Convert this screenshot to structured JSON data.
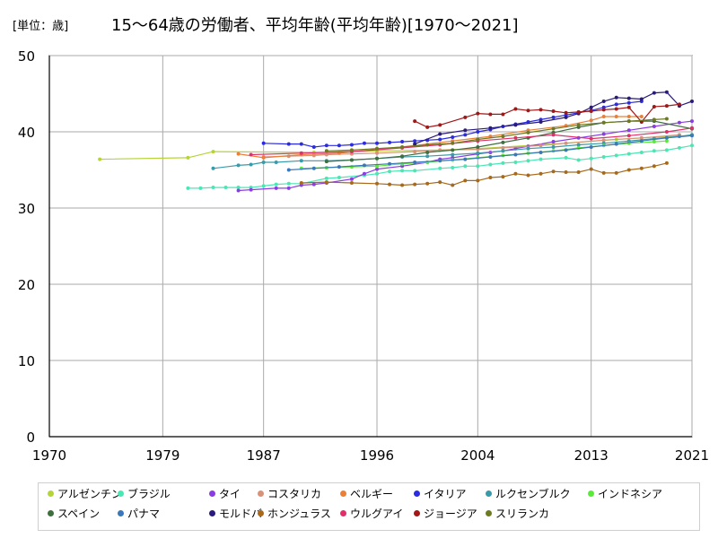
{
  "header": {
    "unit_label": "[単位：歳]",
    "title": "15～64歳の労働者、平均年齢(平均年齢)[1970～2021]"
  },
  "chart_data": {
    "type": "line",
    "xlim": [
      1970,
      2021
    ],
    "ylim": [
      0,
      50
    ],
    "xticks": [
      1970,
      1979,
      1987,
      1996,
      2004,
      2013,
      2021
    ],
    "yticks": [
      0,
      10,
      20,
      30,
      40,
      50
    ],
    "grid": true,
    "legend_position": "bottom",
    "series": [
      {
        "name": "アルゼンチン",
        "color": "#b5d33a",
        "x": [
          1974,
          1981,
          1983,
          1991,
          1996,
          2001,
          2004,
          2010,
          2015,
          2020
        ],
        "y": [
          36.4,
          36.6,
          37.4,
          37.3,
          37.5,
          37.6,
          37.8,
          38.4,
          39.0,
          39.5
        ]
      },
      {
        "name": "ブラジル",
        "color": "#4ce6b4",
        "x": [
          1981,
          1982,
          1983,
          1984,
          1985,
          1986,
          1987,
          1988,
          1989,
          1990,
          1992,
          1993,
          1995,
          1996,
          1997,
          1998,
          1999,
          2001,
          2002,
          2003,
          2004,
          2005,
          2006,
          2007,
          2008,
          2009,
          2011,
          2012,
          2013,
          2014,
          2015,
          2016,
          2017,
          2018,
          2019,
          2020,
          2021
        ],
        "y": [
          32.6,
          32.6,
          32.7,
          32.7,
          32.7,
          32.7,
          32.9,
          33.1,
          33.2,
          33.2,
          33.9,
          34.0,
          34.3,
          34.5,
          34.8,
          34.9,
          34.9,
          35.2,
          35.3,
          35.5,
          35.5,
          35.7,
          35.9,
          36.0,
          36.2,
          36.4,
          36.6,
          36.3,
          36.5,
          36.7,
          36.9,
          37.1,
          37.3,
          37.5,
          37.6,
          37.9,
          38.2
        ]
      },
      {
        "name": "タイ",
        "color": "#8a3ee0",
        "x": [
          1985,
          1986,
          1988,
          1989,
          1990,
          1991,
          1992,
          1994,
          1995,
          1996,
          1998,
          2000,
          2001,
          2002,
          2004,
          2005,
          2006,
          2007,
          2008,
          2010,
          2012,
          2014,
          2016,
          2018,
          2020,
          2021
        ],
        "y": [
          32.3,
          32.4,
          32.6,
          32.6,
          33.0,
          33.1,
          33.3,
          33.8,
          34.5,
          35.1,
          35.5,
          36.0,
          36.4,
          36.6,
          37.1,
          37.3,
          37.5,
          37.8,
          38.1,
          38.7,
          39.2,
          39.7,
          40.2,
          40.7,
          41.2,
          41.4
        ]
      },
      {
        "name": "コスタリカ",
        "color": "#d8927a",
        "x": [
          1987,
          1989,
          1991,
          1992,
          1994,
          1996,
          1999,
          2001,
          2004,
          2006,
          2009,
          2011,
          2014,
          2017,
          2020
        ],
        "y": [
          36.7,
          36.8,
          36.9,
          37.0,
          37.1,
          37.2,
          37.4,
          37.6,
          37.7,
          37.9,
          38.2,
          38.5,
          38.9,
          39.2,
          39.6
        ]
      },
      {
        "name": "ベルギー",
        "color": "#e8803a",
        "x": [
          1985,
          1987,
          1990,
          1993,
          1996,
          1999,
          2002,
          2005,
          2008,
          2011,
          2013,
          2014,
          2015,
          2016,
          2017
        ],
        "y": [
          37.1,
          36.6,
          37.0,
          37.2,
          37.7,
          38.2,
          38.8,
          39.4,
          40.2,
          40.8,
          41.5,
          42.0,
          42.0,
          42.0,
          42.0
        ]
      },
      {
        "name": "イタリア",
        "color": "#2b2be0",
        "x": [
          1987,
          1989,
          1990,
          1991,
          1992,
          1993,
          1994,
          1995,
          1996,
          1997,
          1998,
          1999,
          2000,
          2001,
          2002,
          2003,
          2004,
          2005,
          2006,
          2007,
          2008,
          2009,
          2010,
          2011,
          2012,
          2013,
          2014,
          2015,
          2016,
          2017
        ],
        "y": [
          38.5,
          38.4,
          38.4,
          38.0,
          38.2,
          38.2,
          38.3,
          38.5,
          38.5,
          38.6,
          38.7,
          38.8,
          38.9,
          39.0,
          39.3,
          39.6,
          40.0,
          40.3,
          40.7,
          41.0,
          41.3,
          41.6,
          41.9,
          42.2,
          42.5,
          42.8,
          43.2,
          43.6,
          43.8,
          44.0
        ]
      },
      {
        "name": "ルクセンブルク",
        "color": "#3a9aa8",
        "x": [
          1983,
          1985,
          1986,
          1987,
          1988,
          1990,
          1992,
          1994,
          1996,
          1998,
          2000,
          2002,
          2004,
          2006,
          2008,
          2010,
          2012,
          2014,
          2016,
          2018,
          2020,
          2021
        ],
        "y": [
          35.2,
          35.6,
          35.7,
          36.0,
          36.0,
          36.2,
          36.2,
          36.3,
          36.5,
          36.7,
          36.8,
          37.0,
          37.2,
          37.5,
          37.8,
          38.0,
          38.3,
          38.5,
          38.8,
          39.1,
          39.4,
          39.6
        ]
      },
      {
        "name": "インドネシア",
        "color": "#5cea3a",
        "x": [
          1990,
          1992,
          1994,
          1996,
          1998,
          2000,
          2002,
          2004,
          2006,
          2008,
          2010,
          2012,
          2014,
          2016,
          2018,
          2019
        ],
        "y": [
          35.2,
          35.3,
          35.4,
          35.5,
          35.8,
          36.0,
          36.3,
          36.6,
          36.9,
          37.2,
          37.5,
          37.9,
          38.2,
          38.5,
          38.7,
          38.8
        ]
      },
      {
        "name": "スペイン",
        "color": "#3f6e3f",
        "x": [
          1992,
          1994,
          1996,
          1998,
          2000,
          2002,
          2004,
          2006,
          2008,
          2010,
          2012,
          2014,
          2016,
          2018,
          2021
        ],
        "y": [
          36.1,
          36.3,
          36.5,
          36.8,
          37.3,
          37.6,
          38.0,
          38.6,
          39.2,
          39.9,
          40.6,
          41.2,
          41.4,
          41.4,
          40.4
        ]
      },
      {
        "name": "パナマ",
        "color": "#3a78b8",
        "x": [
          1989,
          1991,
          1993,
          1995,
          1997,
          1999,
          2001,
          2003,
          2005,
          2007,
          2009,
          2011,
          2013,
          2015,
          2017,
          2019,
          2021
        ],
        "y": [
          35.0,
          35.2,
          35.4,
          35.6,
          35.8,
          36.0,
          36.2,
          36.4,
          36.7,
          37.0,
          37.3,
          37.6,
          38.0,
          38.4,
          38.8,
          39.2,
          39.5
        ]
      },
      {
        "name": "モルドバ",
        "color": "#2a1a7a",
        "x": [
          1999,
          2001,
          2003,
          2005,
          2007,
          2009,
          2011,
          2012,
          2013,
          2014,
          2015,
          2016,
          2017,
          2018,
          2019,
          2020,
          2021
        ],
        "y": [
          38.4,
          39.7,
          40.2,
          40.5,
          40.9,
          41.3,
          41.9,
          42.4,
          43.2,
          44.0,
          44.5,
          44.4,
          44.3,
          45.1,
          45.2,
          43.4,
          44.0
        ]
      },
      {
        "name": "ホンジュラス",
        "color": "#a86a1a",
        "x": [
          1990,
          1992,
          1994,
          1996,
          1997,
          1998,
          1999,
          2000,
          2001,
          2002,
          2003,
          2004,
          2005,
          2006,
          2007,
          2008,
          2009,
          2010,
          2011,
          2012,
          2013,
          2014,
          2015,
          2016,
          2017,
          2018,
          2019
        ],
        "y": [
          33.3,
          33.4,
          33.3,
          33.2,
          33.1,
          33.0,
          33.1,
          33.2,
          33.4,
          33.0,
          33.6,
          33.6,
          34.0,
          34.1,
          34.5,
          34.3,
          34.5,
          34.8,
          34.7,
          34.7,
          35.1,
          34.6,
          34.6,
          35.0,
          35.2,
          35.5,
          35.9
        ]
      },
      {
        "name": "ウルグアイ",
        "color": "#e0306a",
        "x": [
          1986,
          1990,
          1994,
          1998,
          2001,
          2004,
          2007,
          2010,
          2013,
          2016,
          2019,
          2021
        ],
        "y": [
          37.0,
          37.2,
          37.4,
          37.9,
          38.3,
          38.8,
          39.2,
          39.6,
          39.1,
          39.5,
          40.0,
          40.5
        ]
      },
      {
        "name": "ジョージア",
        "color": "#a01818",
        "x": [
          1999,
          2000,
          2001,
          2003,
          2004,
          2005,
          2006,
          2007,
          2008,
          2009,
          2010,
          2011,
          2012,
          2013,
          2014,
          2015,
          2016,
          2017,
          2018,
          2019,
          2020
        ],
        "y": [
          41.4,
          40.6,
          40.9,
          41.9,
          42.4,
          42.3,
          42.3,
          43.0,
          42.8,
          42.9,
          42.7,
          42.5,
          42.6,
          42.7,
          42.9,
          43.0,
          43.2,
          41.3,
          43.3,
          43.4,
          43.6
        ]
      },
      {
        "name": "スリランカ",
        "color": "#6e7a22",
        "x": [
          1992,
          1994,
          1996,
          1998,
          2000,
          2002,
          2004,
          2006,
          2008,
          2010,
          2012,
          2014,
          2016,
          2018,
          2019
        ],
        "y": [
          37.5,
          37.6,
          37.8,
          38.0,
          38.3,
          38.5,
          39.0,
          39.4,
          39.9,
          40.4,
          40.9,
          41.2,
          41.4,
          41.6,
          41.7
        ]
      }
    ]
  }
}
